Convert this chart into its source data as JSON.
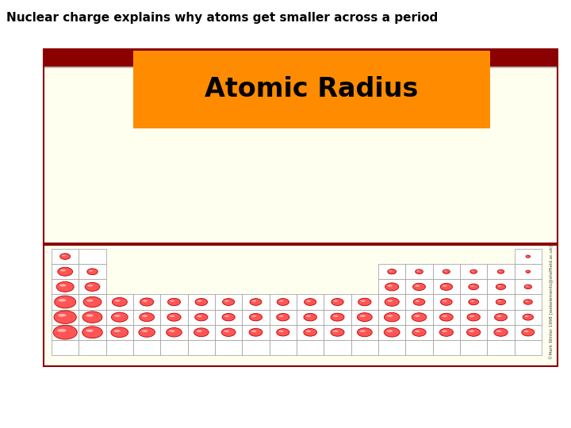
{
  "title": "Nuclear charge explains why atoms get smaller across a period",
  "subtitle": "Atomic Radius",
  "bg_color": "#ffffff",
  "table_bg": "#FFFFF0",
  "header_dark": "#8B0000",
  "subtitle_bg": "#FF8C00",
  "subtitle_color": "#000000",
  "table_border": "#8B0000",
  "cell_border": "#999999",
  "atom_fill": "#FF5555",
  "atom_edge": "#BB0000",
  "atom_highlight": "#FFCCCC",
  "copyright_text": "©Mark Winter 1998 [webelements@sheffield.ac.uk]",
  "atoms": [
    {
      "row": 1,
      "col": 1,
      "size": 0.53
    },
    {
      "row": 1,
      "col": 18,
      "size": 0.18
    },
    {
      "row": 2,
      "col": 1,
      "size": 0.8
    },
    {
      "row": 2,
      "col": 2,
      "size": 0.55
    },
    {
      "row": 2,
      "col": 13,
      "size": 0.43
    },
    {
      "row": 2,
      "col": 14,
      "size": 0.38
    },
    {
      "row": 2,
      "col": 15,
      "size": 0.35
    },
    {
      "row": 2,
      "col": 16,
      "size": 0.33
    },
    {
      "row": 2,
      "col": 17,
      "size": 0.32
    },
    {
      "row": 2,
      "col": 18,
      "size": 0.19
    },
    {
      "row": 3,
      "col": 1,
      "size": 0.95
    },
    {
      "row": 3,
      "col": 2,
      "size": 0.8
    },
    {
      "row": 3,
      "col": 13,
      "size": 0.72
    },
    {
      "row": 3,
      "col": 14,
      "size": 0.66
    },
    {
      "row": 3,
      "col": 15,
      "size": 0.64
    },
    {
      "row": 3,
      "col": 16,
      "size": 0.52
    },
    {
      "row": 3,
      "col": 17,
      "size": 0.5
    },
    {
      "row": 3,
      "col": 18,
      "size": 0.36
    },
    {
      "row": 4,
      "col": 1,
      "size": 1.18
    },
    {
      "row": 4,
      "col": 2,
      "size": 0.99
    },
    {
      "row": 4,
      "col": 3,
      "size": 0.81
    },
    {
      "row": 4,
      "col": 4,
      "size": 0.73
    },
    {
      "row": 4,
      "col": 5,
      "size": 0.67
    },
    {
      "row": 4,
      "col": 6,
      "size": 0.65
    },
    {
      "row": 4,
      "col": 7,
      "size": 0.63
    },
    {
      "row": 4,
      "col": 8,
      "size": 0.62
    },
    {
      "row": 4,
      "col": 9,
      "size": 0.63
    },
    {
      "row": 4,
      "col": 10,
      "size": 0.63
    },
    {
      "row": 4,
      "col": 11,
      "size": 0.64
    },
    {
      "row": 4,
      "col": 12,
      "size": 0.69
    },
    {
      "row": 4,
      "col": 13,
      "size": 0.77
    },
    {
      "row": 4,
      "col": 14,
      "size": 0.61
    },
    {
      "row": 4,
      "col": 15,
      "size": 0.61
    },
    {
      "row": 4,
      "col": 16,
      "size": 0.52
    },
    {
      "row": 4,
      "col": 17,
      "size": 0.5
    },
    {
      "row": 4,
      "col": 18,
      "size": 0.44
    },
    {
      "row": 5,
      "col": 1,
      "size": 1.24
    },
    {
      "row": 5,
      "col": 2,
      "size": 1.08
    },
    {
      "row": 5,
      "col": 3,
      "size": 0.89
    },
    {
      "row": 5,
      "col": 4,
      "size": 0.8
    },
    {
      "row": 5,
      "col": 5,
      "size": 0.73
    },
    {
      "row": 5,
      "col": 6,
      "size": 0.68
    },
    {
      "row": 5,
      "col": 7,
      "size": 0.68
    },
    {
      "row": 5,
      "col": 8,
      "size": 0.67
    },
    {
      "row": 5,
      "col": 9,
      "size": 0.68
    },
    {
      "row": 5,
      "col": 10,
      "size": 0.69
    },
    {
      "row": 5,
      "col": 11,
      "size": 0.72
    },
    {
      "row": 5,
      "col": 12,
      "size": 0.8
    },
    {
      "row": 5,
      "col": 13,
      "size": 0.84
    },
    {
      "row": 5,
      "col": 14,
      "size": 0.79
    },
    {
      "row": 5,
      "col": 15,
      "size": 0.71
    },
    {
      "row": 5,
      "col": 16,
      "size": 0.69
    },
    {
      "row": 5,
      "col": 17,
      "size": 0.67
    },
    {
      "row": 5,
      "col": 18,
      "size": 0.55
    },
    {
      "row": 6,
      "col": 1,
      "size": 1.33
    },
    {
      "row": 6,
      "col": 2,
      "size": 1.11
    },
    {
      "row": 6,
      "col": 3,
      "size": 0.94
    },
    {
      "row": 6,
      "col": 4,
      "size": 0.88
    },
    {
      "row": 6,
      "col": 5,
      "size": 0.84
    },
    {
      "row": 6,
      "col": 6,
      "size": 0.79
    },
    {
      "row": 6,
      "col": 7,
      "size": 0.75
    },
    {
      "row": 6,
      "col": 8,
      "size": 0.71
    },
    {
      "row": 6,
      "col": 9,
      "size": 0.68
    },
    {
      "row": 6,
      "col": 10,
      "size": 0.7
    },
    {
      "row": 6,
      "col": 11,
      "size": 0.72
    },
    {
      "row": 6,
      "col": 12,
      "size": 0.8
    },
    {
      "row": 6,
      "col": 13,
      "size": 0.85
    },
    {
      "row": 6,
      "col": 14,
      "size": 0.73
    },
    {
      "row": 6,
      "col": 15,
      "size": 0.73
    },
    {
      "row": 6,
      "col": 16,
      "size": 0.73
    },
    {
      "row": 6,
      "col": 17,
      "size": 0.73
    },
    {
      "row": 6,
      "col": 18,
      "size": 0.67
    }
  ]
}
